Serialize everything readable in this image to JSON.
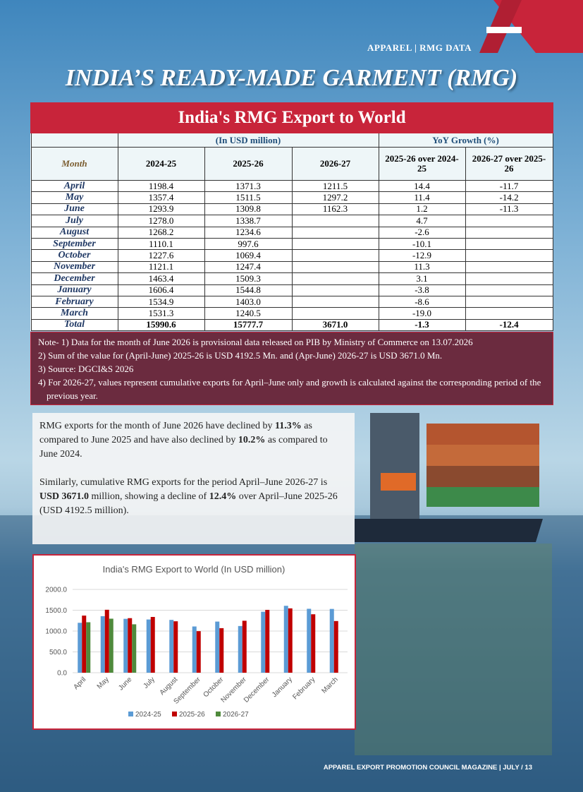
{
  "header": {
    "section": "APPAREL | RMG DATA",
    "title": "INDIA’S READY-MADE GARMENT (RMG)"
  },
  "table": {
    "title": "India's RMG Export to World",
    "group_headers": [
      "(In USD million)",
      "YoY Growth (%)"
    ],
    "columns": [
      "Month",
      "2024-25",
      "2025-26",
      "2026-27",
      "2025-26 over 2024-25",
      "2026-27 over 2025-26"
    ],
    "rows": [
      [
        "April",
        "1198.4",
        "1371.3",
        "1211.5",
        "14.4",
        "-11.7"
      ],
      [
        "May",
        "1357.4",
        "1511.5",
        "1297.2",
        "11.4",
        "-14.2"
      ],
      [
        "June",
        "1293.9",
        "1309.8",
        "1162.3",
        "1.2",
        "-11.3"
      ],
      [
        "July",
        "1278.0",
        "1338.7",
        null,
        "4.7",
        null
      ],
      [
        "August",
        "1268.2",
        "1234.6",
        null,
        "-2.6",
        null
      ],
      [
        "September",
        "1110.1",
        "997.6",
        null,
        "-10.1",
        null
      ],
      [
        "October",
        "1227.6",
        "1069.4",
        null,
        "-12.9",
        null
      ],
      [
        "November",
        "1121.1",
        "1247.4",
        null,
        "11.3",
        null
      ],
      [
        "December",
        "1463.4",
        "1509.3",
        null,
        "3.1",
        null
      ],
      [
        "January",
        "1606.4",
        "1544.8",
        null,
        "-3.8",
        null
      ],
      [
        "February",
        "1534.9",
        "1403.0",
        null,
        "-8.6",
        null
      ],
      [
        "March",
        "1531.3",
        "1240.5",
        null,
        "-19.0",
        null
      ],
      [
        "Total",
        "15990.6",
        "15777.7",
        "3671.0",
        "-1.3",
        "-12.4"
      ]
    ],
    "notes": [
      "Note- 1) Data for the month of  June 2026 is provisional data released on PIB by Ministry of Commerce on 13.07.2026",
      "2) Sum of the value for (April-June) 2025-26 is USD  4192.5 Mn. and (Apr-June) 2026-27 is USD 3671.0 Mn.",
      "3) Source: DGCI&S 2026",
      "4) For 2026-27, values represent cumulative exports for April–June only and growth is calculated against the corresponding period of the previous year."
    ]
  },
  "summary": {
    "paragraphs": [
      [
        "RMG exports for the month of June 2026 have declined by ",
        "11.3%",
        " as compared to June 2025 and have also declined by ",
        "10.2%",
        " as compared to June 2024."
      ],
      [
        "Similarly, cumulative RMG exports for the period April–June 2026-27 is ",
        "USD 3671.0",
        " million, showing a decline of ",
        "12.4%",
        " over April–June 2025-26 (USD 4192.5 million)."
      ]
    ]
  },
  "chart_data": {
    "type": "bar",
    "title": "India's RMG Export to World (In USD million)",
    "categories": [
      "April",
      "May",
      "June",
      "July",
      "August",
      "September",
      "October",
      "November",
      "December",
      "January",
      "February",
      "March"
    ],
    "series": [
      {
        "name": "2024-25",
        "color": "#5b9bd5",
        "values": [
          1198.4,
          1357.4,
          1293.9,
          1278.0,
          1268.2,
          1110.1,
          1227.6,
          1121.1,
          1463.4,
          1606.4,
          1534.9,
          1531.3
        ]
      },
      {
        "name": "2025-26",
        "color": "#c00000",
        "values": [
          1371.3,
          1511.5,
          1309.8,
          1338.7,
          1234.6,
          997.6,
          1069.4,
          1247.4,
          1509.3,
          1544.8,
          1403.0,
          1240.5
        ]
      },
      {
        "name": "2026-27",
        "color": "#4f8a3c",
        "values": [
          1211.5,
          1297.2,
          1162.3,
          null,
          null,
          null,
          null,
          null,
          null,
          null,
          null,
          null
        ]
      }
    ],
    "ylim": [
      0,
      2000
    ],
    "yticks": [
      {
        "value": 0,
        "label": "0.0"
      },
      {
        "value": 500,
        "label": "500.0"
      },
      {
        "value": 1000,
        "label": "1000.0"
      },
      {
        "value": 1500,
        "label": "1500.0"
      },
      {
        "value": 2000,
        "label": "2000.0"
      }
    ],
    "grid": true,
    "legend": "bottom"
  },
  "footer": {
    "text": "APPAREL EXPORT PROMOTION COUNCIL MAGAZINE | JULY / 13"
  }
}
